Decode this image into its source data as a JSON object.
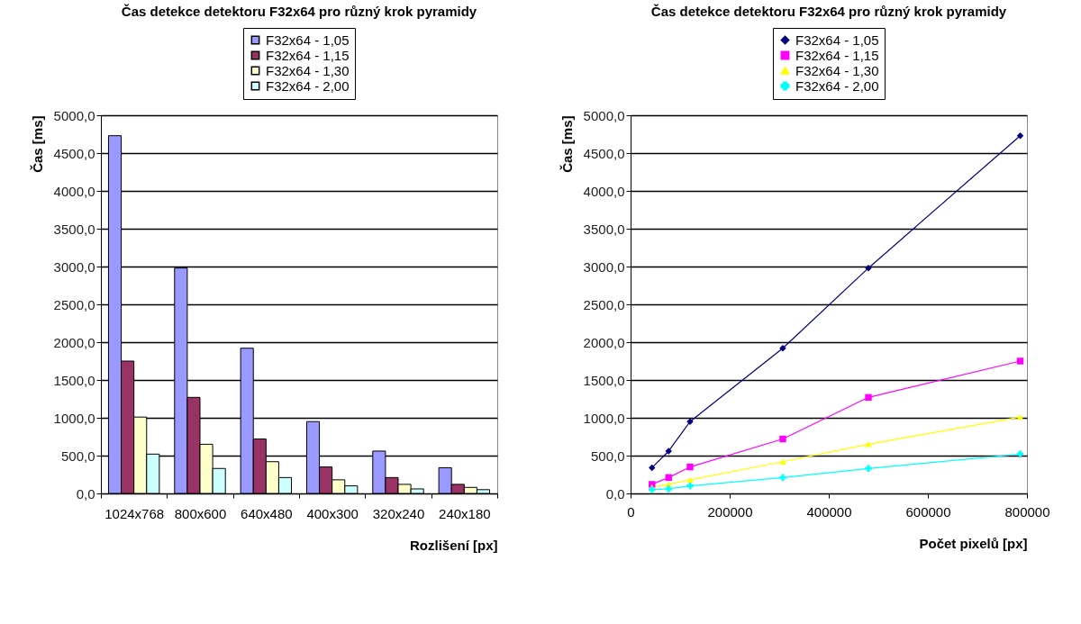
{
  "chart_data": [
    {
      "type": "bar",
      "title": "Čas detekce detektoru F32x64 pro různý krok pyramidy",
      "xlabel": "Rozlišení [px]",
      "ylabel": "Čas [ms]",
      "categories": [
        "1024x768",
        "800x600",
        "640x480",
        "400x300",
        "320x240",
        "240x180"
      ],
      "series": [
        {
          "name": "F32x64 - 1,05",
          "color": "#9999ff",
          "values": [
            4730,
            2980,
            1920,
            950,
            560,
            340
          ]
        },
        {
          "name": "F32x64 - 1,15",
          "color": "#993366",
          "values": [
            1750,
            1270,
            720,
            350,
            210,
            120
          ]
        },
        {
          "name": "F32x64 - 1,30",
          "color": "#ffffcc",
          "values": [
            1010,
            650,
            420,
            180,
            120,
            80
          ]
        },
        {
          "name": "F32x64 - 2,00",
          "color": "#ccffff",
          "values": [
            520,
            330,
            210,
            100,
            60,
            50
          ]
        }
      ],
      "ylim": [
        0,
        5000
      ],
      "yticks": [
        {
          "value": 0,
          "label": "0,0"
        },
        {
          "value": 500,
          "label": "500,0"
        },
        {
          "value": 1000,
          "label": "1000,0"
        },
        {
          "value": 1500,
          "label": "1500,0"
        },
        {
          "value": 2000,
          "label": "2000,0"
        },
        {
          "value": 2500,
          "label": "2500,0"
        },
        {
          "value": 3000,
          "label": "3000,0"
        },
        {
          "value": 3500,
          "label": "3500,0"
        },
        {
          "value": 4000,
          "label": "4000,0"
        },
        {
          "value": 4500,
          "label": "4500,0"
        },
        {
          "value": 5000,
          "label": "5000,0"
        }
      ],
      "grid": "y",
      "legend": "top"
    },
    {
      "type": "line",
      "title": "Čas detekce detektoru F32x64 pro různý krok pyramidy",
      "xlabel": "Počet pixelů [px]",
      "ylabel": "Čas [ms]",
      "x": [
        786432,
        480000,
        307200,
        120000,
        76800,
        43200
      ],
      "series": [
        {
          "name": "F32x64 - 1,05",
          "color": "#000080",
          "marker": "diamond",
          "values": [
            4730,
            2980,
            1920,
            950,
            560,
            340
          ]
        },
        {
          "name": "F32x64 - 1,15",
          "color": "#ff00ff",
          "marker": "square",
          "values": [
            1750,
            1270,
            720,
            350,
            210,
            120
          ]
        },
        {
          "name": "F32x64 - 1,30",
          "color": "#ffff00",
          "marker": "triangle",
          "values": [
            1010,
            650,
            420,
            180,
            120,
            80
          ]
        },
        {
          "name": "F32x64 - 2,00",
          "color": "#00ffff",
          "marker": "cross",
          "values": [
            520,
            330,
            210,
            100,
            60,
            50
          ]
        }
      ],
      "xlim": [
        0,
        800000
      ],
      "xticks": [
        0,
        200000,
        400000,
        600000,
        800000
      ],
      "ylim": [
        0,
        5000
      ],
      "yticks": [
        {
          "value": 0,
          "label": "0,0"
        },
        {
          "value": 500,
          "label": "500,0"
        },
        {
          "value": 1000,
          "label": "1000,0"
        },
        {
          "value": 1500,
          "label": "1500,0"
        },
        {
          "value": 2000,
          "label": "2000,0"
        },
        {
          "value": 2500,
          "label": "2500,0"
        },
        {
          "value": 3000,
          "label": "3000,0"
        },
        {
          "value": 3500,
          "label": "3500,0"
        },
        {
          "value": 4000,
          "label": "4000,0"
        },
        {
          "value": 4500,
          "label": "4500,0"
        },
        {
          "value": 5000,
          "label": "5000,0"
        }
      ],
      "grid": "y",
      "legend": "top",
      "line_style": "solid"
    }
  ]
}
